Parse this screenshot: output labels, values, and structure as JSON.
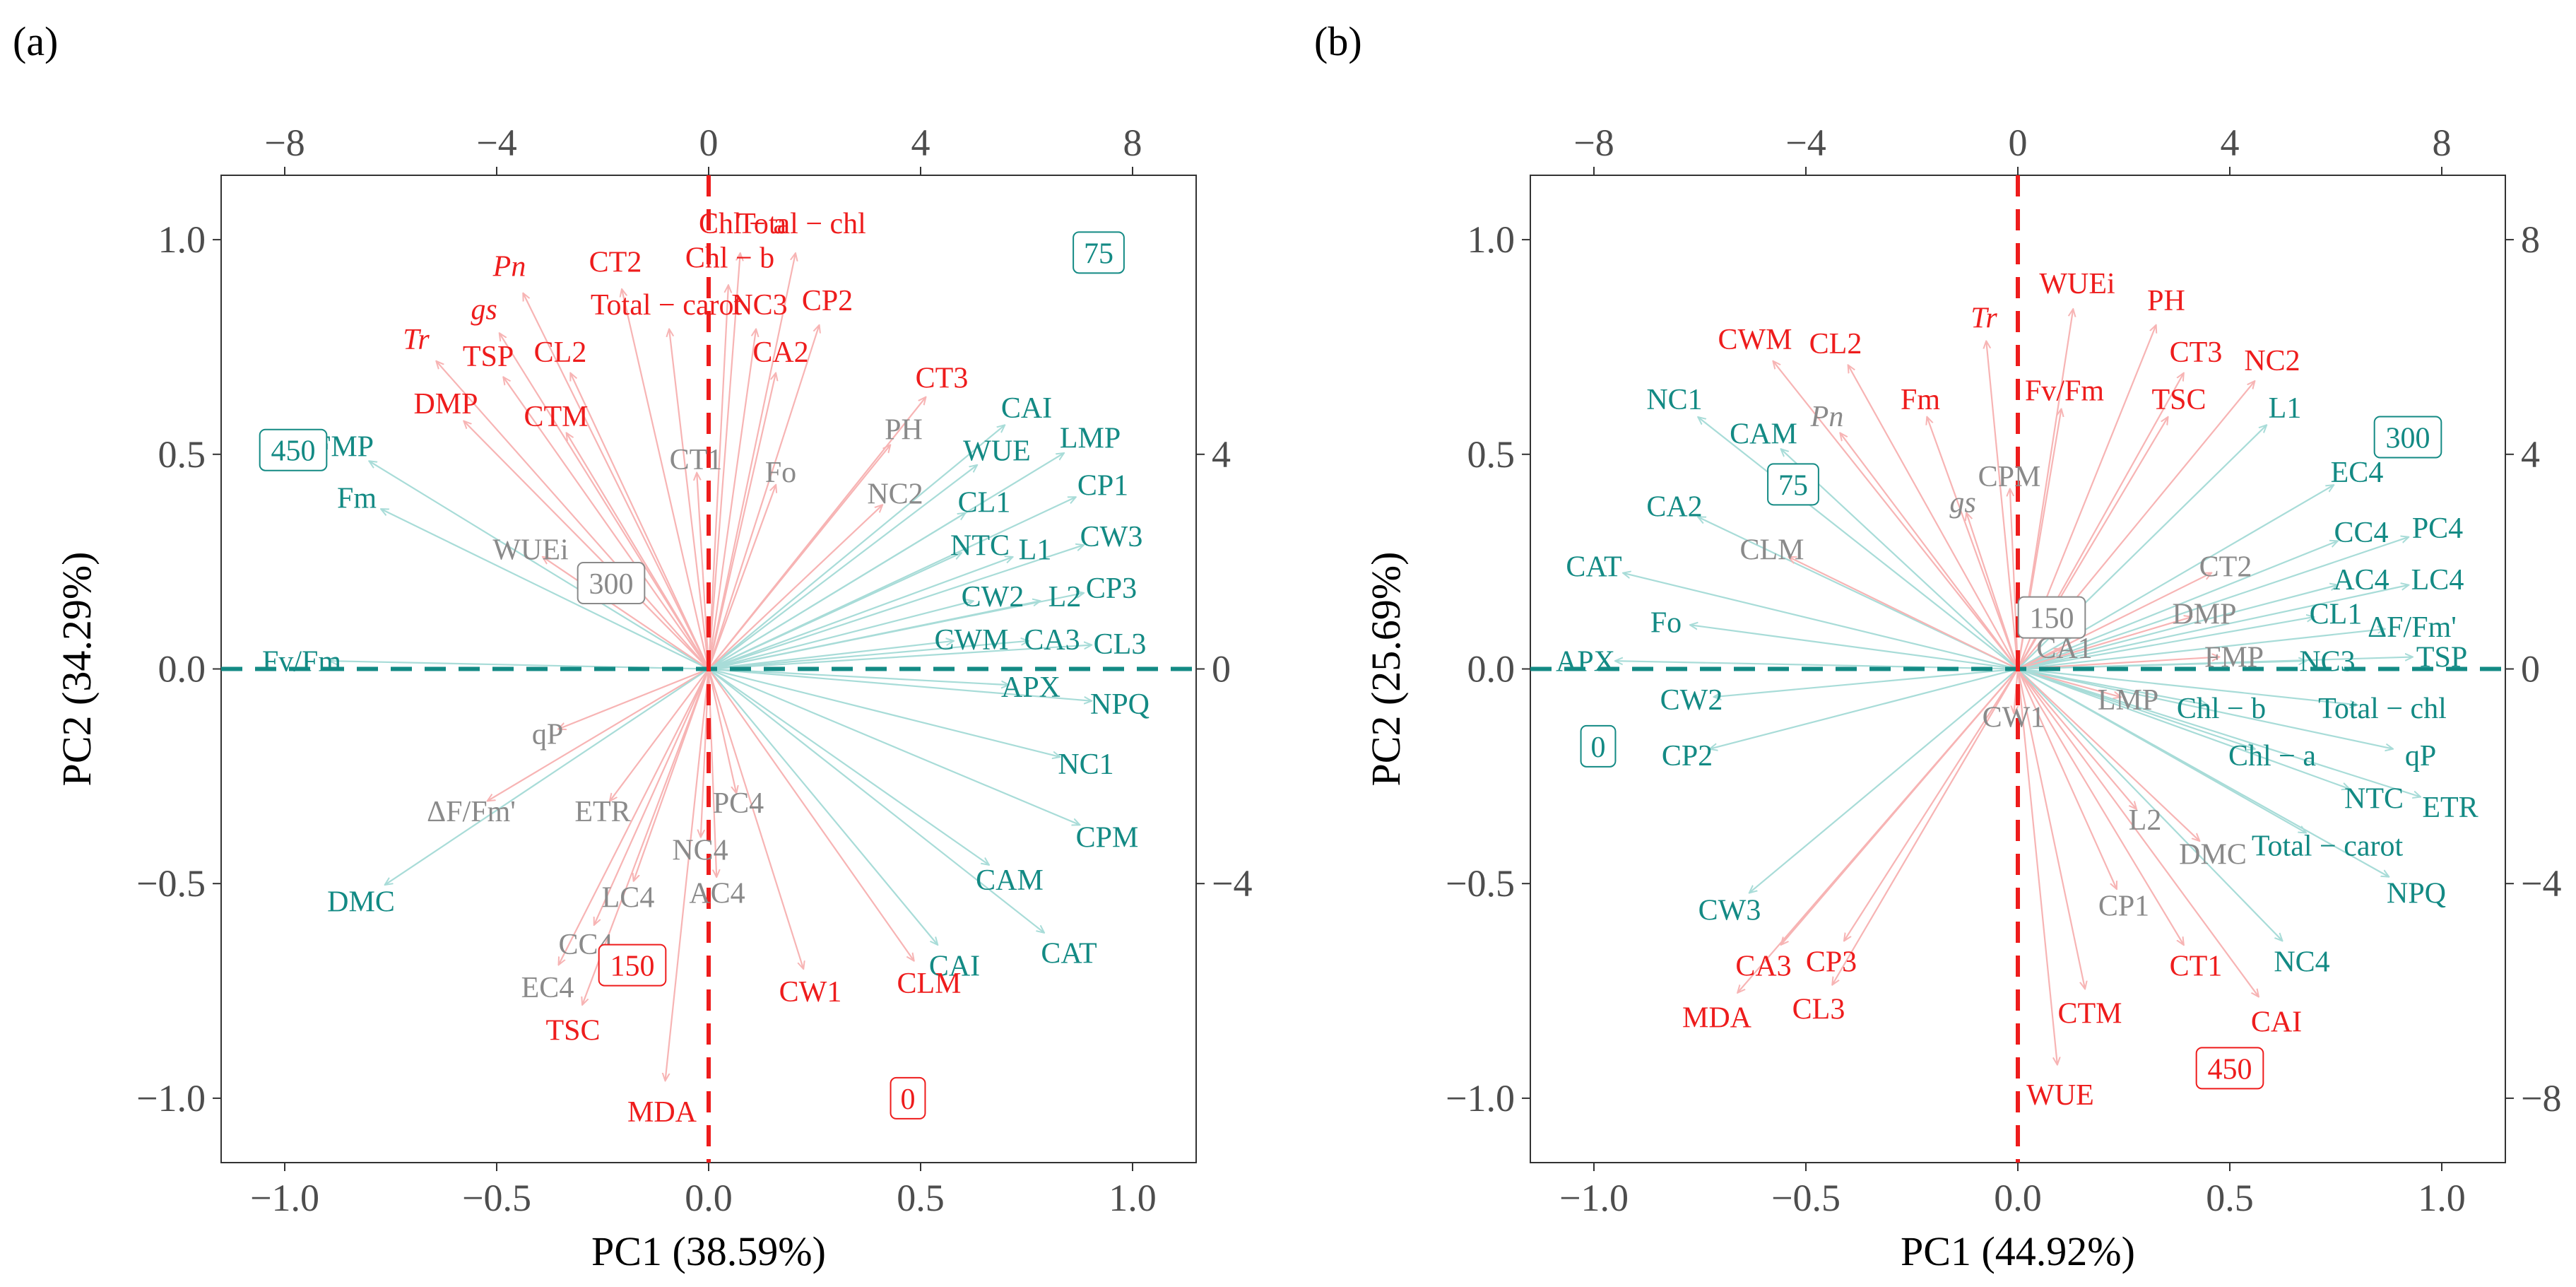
{
  "chart_data": [
    {
      "panel": "(a)",
      "type": "biplot",
      "xlabel": "PC1 (38.59%)",
      "ylabel": "PC2 (34.29%)",
      "xlim": [
        -1.15,
        1.15
      ],
      "ylim": [
        -1.15,
        1.15
      ],
      "x_ticks": [
        "−1.0",
        "−0.5",
        "0.0",
        "0.5",
        "1.0"
      ],
      "y_ticks": [
        "−1.0",
        "−0.5",
        "0.0",
        "0.5",
        "1.0"
      ],
      "top_ticks": [
        "−8",
        "−4",
        "0",
        "4",
        "8"
      ],
      "right_ticks": [
        "−4",
        "0",
        "4"
      ],
      "ref_lines": {
        "vertical_color": "#ee1c1c",
        "horizontal_color": "#138a84"
      },
      "colors": {
        "red": "#ee1c1c",
        "teal": "#138a84",
        "gray": "#8a8a8a"
      },
      "variables": [
        {
          "label": "Chl − a",
          "x": 0.08,
          "y": 1.04,
          "color": "red"
        },
        {
          "label": "Total − chl",
          "x": 0.22,
          "y": 1.04,
          "color": "red"
        },
        {
          "label": "Chl − b",
          "x": 0.05,
          "y": 0.96,
          "color": "red"
        },
        {
          "label": "CT2",
          "x": -0.22,
          "y": 0.95,
          "color": "red"
        },
        {
          "label": "Pn",
          "x": -0.47,
          "y": 0.94,
          "color": "red",
          "math": true
        },
        {
          "label": "Total − carot",
          "x": -0.1,
          "y": 0.85,
          "color": "red"
        },
        {
          "label": "NC3",
          "x": 0.12,
          "y": 0.85,
          "color": "red"
        },
        {
          "label": "CP2",
          "x": 0.28,
          "y": 0.86,
          "color": "red"
        },
        {
          "label": "gs",
          "x": -0.53,
          "y": 0.84,
          "color": "red",
          "math": true
        },
        {
          "label": "Tr",
          "x": -0.69,
          "y": 0.77,
          "color": "red",
          "math": true
        },
        {
          "label": "TSP",
          "x": -0.52,
          "y": 0.73,
          "color": "red"
        },
        {
          "label": "CL2",
          "x": -0.35,
          "y": 0.74,
          "color": "red"
        },
        {
          "label": "CA2",
          "x": 0.17,
          "y": 0.74,
          "color": "red"
        },
        {
          "label": "CT3",
          "x": 0.55,
          "y": 0.68,
          "color": "red"
        },
        {
          "label": "DMP",
          "x": -0.62,
          "y": 0.62,
          "color": "red"
        },
        {
          "label": "CTM",
          "x": -0.36,
          "y": 0.59,
          "color": "red"
        },
        {
          "label": "CAI",
          "x": 0.75,
          "y": 0.61,
          "color": "teal"
        },
        {
          "label": "LMP",
          "x": 0.9,
          "y": 0.54,
          "color": "teal"
        },
        {
          "label": "PH",
          "x": 0.46,
          "y": 0.56,
          "color": "gray"
        },
        {
          "label": "FMP",
          "x": -0.86,
          "y": 0.52,
          "color": "teal"
        },
        {
          "label": "CT1",
          "x": -0.03,
          "y": 0.49,
          "color": "gray"
        },
        {
          "label": "Fo",
          "x": 0.17,
          "y": 0.46,
          "color": "gray"
        },
        {
          "label": "WUE",
          "x": 0.68,
          "y": 0.51,
          "color": "teal"
        },
        {
          "label": "NC2",
          "x": 0.44,
          "y": 0.41,
          "color": "gray"
        },
        {
          "label": "CL1",
          "x": 0.65,
          "y": 0.39,
          "color": "teal"
        },
        {
          "label": "CP1",
          "x": 0.93,
          "y": 0.43,
          "color": "teal"
        },
        {
          "label": "Fm",
          "x": -0.83,
          "y": 0.4,
          "color": "teal"
        },
        {
          "label": "NTC",
          "x": 0.64,
          "y": 0.29,
          "color": "teal"
        },
        {
          "label": "L1",
          "x": 0.77,
          "y": 0.28,
          "color": "teal"
        },
        {
          "label": "CW3",
          "x": 0.95,
          "y": 0.31,
          "color": "teal"
        },
        {
          "label": "WUEi",
          "x": -0.42,
          "y": 0.28,
          "color": "gray",
          "sub": "i"
        },
        {
          "label": "CW2",
          "x": 0.67,
          "y": 0.17,
          "color": "teal"
        },
        {
          "label": "L2",
          "x": 0.84,
          "y": 0.17,
          "color": "teal"
        },
        {
          "label": "CP3",
          "x": 0.95,
          "y": 0.19,
          "color": "teal"
        },
        {
          "label": "CWM",
          "x": 0.62,
          "y": 0.07,
          "color": "teal"
        },
        {
          "label": "CA3",
          "x": 0.81,
          "y": 0.07,
          "color": "teal"
        },
        {
          "label": "CL3",
          "x": 0.97,
          "y": 0.06,
          "color": "teal"
        },
        {
          "label": "Fv/Fm",
          "x": -0.96,
          "y": 0.02,
          "color": "teal"
        },
        {
          "label": "APX",
          "x": 0.76,
          "y": -0.04,
          "color": "teal"
        },
        {
          "label": "NPQ",
          "x": 0.97,
          "y": -0.08,
          "color": "teal"
        },
        {
          "label": "qP",
          "x": -0.38,
          "y": -0.15,
          "color": "gray"
        },
        {
          "label": "NC1",
          "x": 0.89,
          "y": -0.22,
          "color": "teal"
        },
        {
          "label": "ΔF/Fm'",
          "x": -0.56,
          "y": -0.33,
          "color": "gray"
        },
        {
          "label": "ETR",
          "x": -0.25,
          "y": -0.33,
          "color": "gray"
        },
        {
          "label": "PC4",
          "x": 0.07,
          "y": -0.31,
          "color": "gray"
        },
        {
          "label": "CPM",
          "x": 0.94,
          "y": -0.39,
          "color": "teal"
        },
        {
          "label": "NC4",
          "x": -0.02,
          "y": -0.42,
          "color": "gray"
        },
        {
          "label": "DMC",
          "x": -0.82,
          "y": -0.54,
          "color": "teal"
        },
        {
          "label": "LC4",
          "x": -0.19,
          "y": -0.53,
          "color": "gray"
        },
        {
          "label": "AC4",
          "x": 0.02,
          "y": -0.52,
          "color": "gray"
        },
        {
          "label": "CAM",
          "x": 0.71,
          "y": -0.49,
          "color": "teal"
        },
        {
          "label": "CC4",
          "x": -0.29,
          "y": -0.64,
          "color": "gray"
        },
        {
          "label": "CAI",
          "x": 0.58,
          "y": -0.69,
          "color": "teal"
        },
        {
          "label": "CAT",
          "x": 0.85,
          "y": -0.66,
          "color": "teal"
        },
        {
          "label": "EC4",
          "x": -0.38,
          "y": -0.74,
          "color": "gray"
        },
        {
          "label": "CW1",
          "x": 0.24,
          "y": -0.75,
          "color": "red"
        },
        {
          "label": "CLM",
          "x": 0.52,
          "y": -0.73,
          "color": "red"
        },
        {
          "label": "TSC",
          "x": -0.32,
          "y": -0.84,
          "color": "red"
        },
        {
          "label": "MDA",
          "x": -0.11,
          "y": -1.03,
          "color": "red"
        }
      ],
      "groups": [
        {
          "label": "75",
          "x": 0.92,
          "y": 0.97,
          "color": "teal"
        },
        {
          "label": "450",
          "x": -0.98,
          "y": 0.51,
          "color": "teal"
        },
        {
          "label": "300",
          "x": -0.23,
          "y": 0.2,
          "color": "gray"
        },
        {
          "label": "150",
          "x": -0.18,
          "y": -0.69,
          "color": "red"
        },
        {
          "label": "0",
          "x": 0.47,
          "y": -1.0,
          "color": "red"
        }
      ]
    },
    {
      "panel": "(b)",
      "type": "biplot",
      "xlabel": "PC1 (44.92%)",
      "ylabel": "PC2 (25.69%)",
      "xlim": [
        -1.15,
        1.15
      ],
      "ylim": [
        -1.15,
        1.15
      ],
      "x_ticks": [
        "−1.0",
        "−0.5",
        "0.0",
        "0.5",
        "1.0"
      ],
      "y_ticks": [
        "−1.0",
        "−0.5",
        "0.0",
        "0.5",
        "1.0"
      ],
      "top_ticks": [
        "−8",
        "−4",
        "0",
        "4",
        "8"
      ],
      "right_ticks": [
        "−8",
        "−4",
        "0",
        "4",
        "8"
      ],
      "ref_lines": {
        "vertical_color": "#ee1c1c",
        "horizontal_color": "#138a84"
      },
      "colors": {
        "red": "#ee1c1c",
        "teal": "#138a84",
        "gray": "#8a8a8a"
      },
      "variables": [
        {
          "label": "WUEi",
          "x": 0.14,
          "y": 0.9,
          "color": "red",
          "sub": "i"
        },
        {
          "label": "PH",
          "x": 0.35,
          "y": 0.86,
          "color": "red"
        },
        {
          "label": "Tr",
          "x": -0.08,
          "y": 0.82,
          "color": "red",
          "math": true
        },
        {
          "label": "CWM",
          "x": -0.62,
          "y": 0.77,
          "color": "red"
        },
        {
          "label": "CL2",
          "x": -0.43,
          "y": 0.76,
          "color": "red"
        },
        {
          "label": "CT3",
          "x": 0.42,
          "y": 0.74,
          "color": "red"
        },
        {
          "label": "NC2",
          "x": 0.6,
          "y": 0.72,
          "color": "red"
        },
        {
          "label": "Fv/Fm",
          "x": 0.11,
          "y": 0.65,
          "color": "red"
        },
        {
          "label": "TSC",
          "x": 0.38,
          "y": 0.63,
          "color": "red"
        },
        {
          "label": "Fm",
          "x": -0.23,
          "y": 0.63,
          "color": "red"
        },
        {
          "label": "NC1",
          "x": -0.81,
          "y": 0.63,
          "color": "teal"
        },
        {
          "label": "L1",
          "x": 0.63,
          "y": 0.61,
          "color": "teal"
        },
        {
          "label": "Pn",
          "x": -0.45,
          "y": 0.59,
          "color": "gray",
          "math": true
        },
        {
          "label": "CAM",
          "x": -0.6,
          "y": 0.55,
          "color": "teal"
        },
        {
          "label": "CPM",
          "x": -0.02,
          "y": 0.45,
          "color": "gray"
        },
        {
          "label": "EC4",
          "x": 0.8,
          "y": 0.46,
          "color": "teal"
        },
        {
          "label": "gs",
          "x": -0.13,
          "y": 0.39,
          "color": "gray",
          "math": true
        },
        {
          "label": "CA2",
          "x": -0.81,
          "y": 0.38,
          "color": "teal"
        },
        {
          "label": "PC4",
          "x": 0.99,
          "y": 0.33,
          "color": "teal"
        },
        {
          "label": "CC4",
          "x": 0.81,
          "y": 0.32,
          "color": "teal"
        },
        {
          "label": "CLM",
          "x": -0.58,
          "y": 0.28,
          "color": "gray"
        },
        {
          "label": "CAT",
          "x": -1.0,
          "y": 0.24,
          "color": "teal"
        },
        {
          "label": "CT2",
          "x": 0.49,
          "y": 0.24,
          "color": "gray"
        },
        {
          "label": "AC4",
          "x": 0.81,
          "y": 0.21,
          "color": "teal"
        },
        {
          "label": "LC4",
          "x": 0.99,
          "y": 0.21,
          "color": "teal"
        },
        {
          "label": "DMP",
          "x": 0.44,
          "y": 0.13,
          "color": "gray"
        },
        {
          "label": "CL1",
          "x": 0.75,
          "y": 0.13,
          "color": "teal"
        },
        {
          "label": "ΔF/Fm'",
          "x": 0.93,
          "y": 0.1,
          "color": "teal"
        },
        {
          "label": "Fo",
          "x": -0.83,
          "y": 0.11,
          "color": "teal"
        },
        {
          "label": "CA1",
          "x": 0.11,
          "y": 0.05,
          "color": "gray"
        },
        {
          "label": "FMP",
          "x": 0.51,
          "y": 0.03,
          "color": "gray"
        },
        {
          "label": "NC3",
          "x": 0.73,
          "y": 0.02,
          "color": "teal"
        },
        {
          "label": "TSP",
          "x": 1.0,
          "y": 0.03,
          "color": "teal"
        },
        {
          "label": "APX",
          "x": -1.02,
          "y": 0.02,
          "color": "teal"
        },
        {
          "label": "LMP",
          "x": 0.26,
          "y": -0.07,
          "color": "gray"
        },
        {
          "label": "CW2",
          "x": -0.77,
          "y": -0.07,
          "color": "teal"
        },
        {
          "label": "Chl − b",
          "x": 0.48,
          "y": -0.09,
          "color": "teal"
        },
        {
          "label": "Total − chl",
          "x": 0.86,
          "y": -0.09,
          "color": "teal"
        },
        {
          "label": "CW1",
          "x": -0.01,
          "y": -0.11,
          "color": "gray"
        },
        {
          "label": "CP2",
          "x": -0.78,
          "y": -0.2,
          "color": "teal"
        },
        {
          "label": "Chl − a",
          "x": 0.6,
          "y": -0.2,
          "color": "teal"
        },
        {
          "label": "qP",
          "x": 0.95,
          "y": -0.2,
          "color": "teal"
        },
        {
          "label": "NTC",
          "x": 0.84,
          "y": -0.3,
          "color": "teal"
        },
        {
          "label": "ETR",
          "x": 1.02,
          "y": -0.32,
          "color": "teal"
        },
        {
          "label": "L2",
          "x": 0.3,
          "y": -0.35,
          "color": "gray"
        },
        {
          "label": "DMC",
          "x": 0.46,
          "y": -0.43,
          "color": "gray"
        },
        {
          "label": "Total − carot",
          "x": 0.73,
          "y": -0.41,
          "color": "teal"
        },
        {
          "label": "CP1",
          "x": 0.25,
          "y": -0.55,
          "color": "gray"
        },
        {
          "label": "NPQ",
          "x": 0.94,
          "y": -0.52,
          "color": "teal"
        },
        {
          "label": "CW3",
          "x": -0.68,
          "y": -0.56,
          "color": "teal"
        },
        {
          "label": "CA3",
          "x": -0.6,
          "y": -0.69,
          "color": "red"
        },
        {
          "label": "CP3",
          "x": -0.44,
          "y": -0.68,
          "color": "red"
        },
        {
          "label": "CT1",
          "x": 0.42,
          "y": -0.69,
          "color": "red"
        },
        {
          "label": "NC4",
          "x": 0.67,
          "y": -0.68,
          "color": "teal"
        },
        {
          "label": "MDA",
          "x": -0.71,
          "y": -0.81,
          "color": "red"
        },
        {
          "label": "CL3",
          "x": -0.47,
          "y": -0.79,
          "color": "red"
        },
        {
          "label": "CTM",
          "x": 0.17,
          "y": -0.8,
          "color": "red"
        },
        {
          "label": "CAI",
          "x": 0.61,
          "y": -0.82,
          "color": "red"
        },
        {
          "label": "WUE",
          "x": 0.1,
          "y": -0.99,
          "color": "red"
        }
      ],
      "groups": [
        {
          "label": "300",
          "x": 0.92,
          "y": 0.54,
          "color": "teal"
        },
        {
          "label": "75",
          "x": -0.53,
          "y": 0.43,
          "color": "teal"
        },
        {
          "label": "150",
          "x": 0.08,
          "y": 0.12,
          "color": "gray"
        },
        {
          "label": "0",
          "x": -0.99,
          "y": -0.18,
          "color": "teal"
        },
        {
          "label": "450",
          "x": 0.5,
          "y": -0.93,
          "color": "red"
        }
      ]
    }
  ]
}
